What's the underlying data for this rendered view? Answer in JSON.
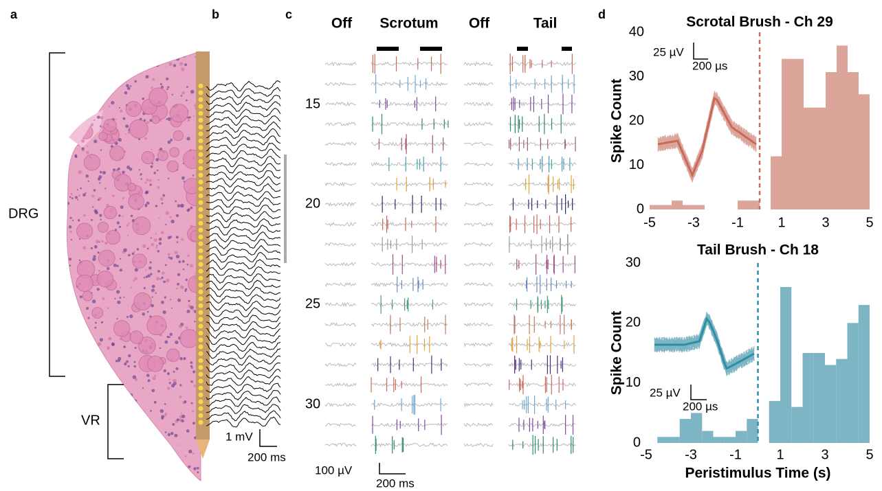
{
  "panel_labels": [
    "a",
    "b",
    "c",
    "d"
  ],
  "panel_a": {
    "regions": [
      "DRG",
      "VR"
    ]
  },
  "panel_b": {
    "scale_v": "1 mV",
    "scale_t": "200 ms"
  },
  "panel_c": {
    "conditions": [
      "Off",
      "Scrotum",
      "Off",
      "Tail"
    ],
    "channel_labels": [
      "15",
      "20",
      "25",
      "30"
    ],
    "scale_v": "100 µV",
    "scale_t": "200 ms"
  },
  "chart_data": [
    {
      "type": "histogram",
      "title": "Scrotal Brush - Ch 29",
      "ylabel": "Spike Count",
      "bins": [
        -5,
        -4.5,
        -4,
        -3.5,
        -3,
        -2.5,
        -2,
        -1.5,
        -1,
        -0.5,
        0,
        0.5,
        1,
        1.5,
        2,
        2.5,
        3,
        3.5,
        4,
        4.5,
        5
      ],
      "values": [
        1,
        1,
        2,
        1,
        1,
        0,
        0,
        0,
        2,
        2,
        0,
        12,
        34,
        34,
        23,
        23,
        31,
        37,
        31,
        26
      ],
      "color": "#dba59a",
      "line_color": "#c8695a",
      "stimulus_onset": 0,
      "xlim": [
        -5,
        5
      ],
      "ylim": [
        0,
        40
      ],
      "xticks": [
        -5,
        -3,
        -1,
        1,
        3,
        5
      ],
      "yticks": [
        0,
        10,
        20,
        30,
        40
      ],
      "inset_scale_y": "25 µV",
      "inset_scale_x": "200 µs"
    },
    {
      "type": "histogram",
      "title": "Tail Brush - Ch 18",
      "ylabel": "Spike Count",
      "xlabel": "Peristimulus Time (s)",
      "bins": [
        -5,
        -4.5,
        -4,
        -3.5,
        -3,
        -2.5,
        -2,
        -1.5,
        -1,
        -0.5,
        0,
        0.5,
        1,
        1.5,
        2,
        2.5,
        3,
        3.5,
        4,
        4.5,
        5
      ],
      "values": [
        0,
        1,
        1,
        4,
        5,
        2,
        1,
        1,
        2,
        4,
        0,
        7,
        26,
        6,
        15,
        15,
        13,
        14,
        20,
        23
      ],
      "color": "#7db5c5",
      "line_color": "#2e8ea5",
      "stimulus_onset": 0,
      "xlim": [
        -5,
        5
      ],
      "ylim": [
        0,
        30
      ],
      "xticks": [
        -5,
        -3,
        -1,
        1,
        3,
        5
      ],
      "yticks": [
        0,
        10,
        20,
        30
      ],
      "inset_scale_y": "25 µV",
      "inset_scale_x": "200 µs"
    }
  ]
}
